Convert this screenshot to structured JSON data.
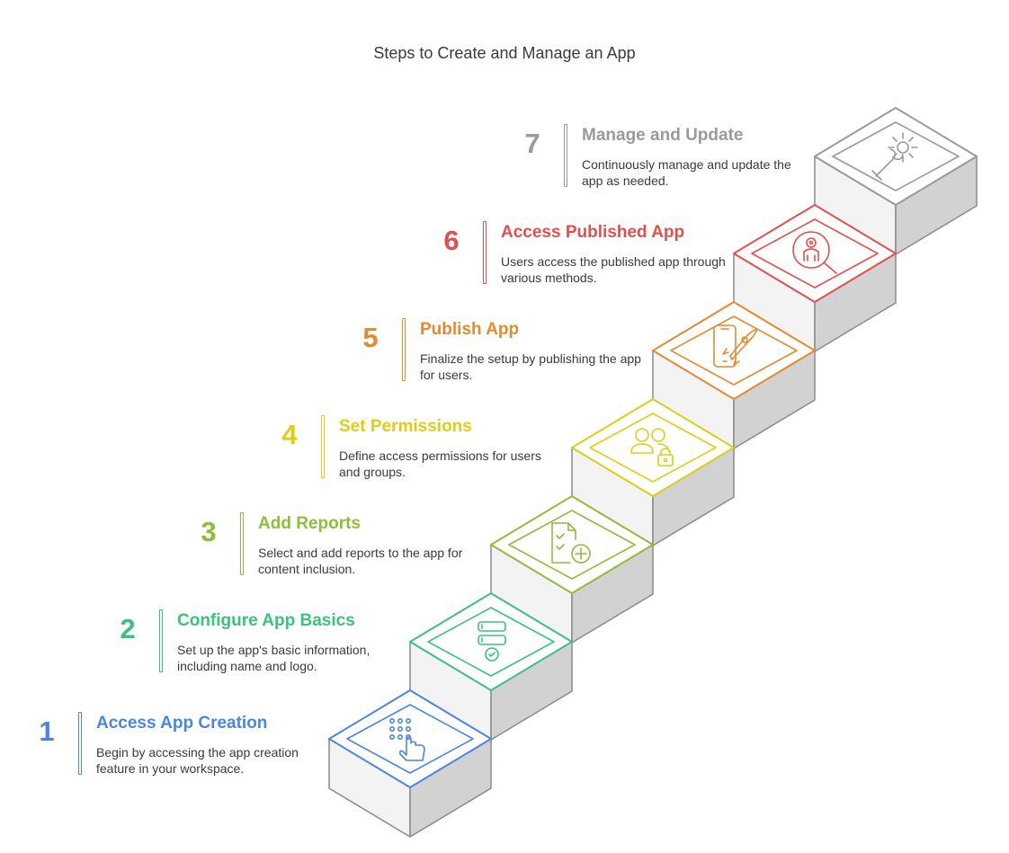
{
  "title": "Steps to Create and Manage an App",
  "steps": [
    {
      "num": "1",
      "title": "Access App Creation",
      "desc": "Begin by accessing the app creation feature in your workspace.",
      "color": "#4a86e0",
      "icon": "pointer-hand-keypad-icon"
    },
    {
      "num": "2",
      "title": "Configure App Basics",
      "desc": "Set up the app's basic information, including name and logo.",
      "color": "#3cc27c",
      "icon": "form-fields-check-icon"
    },
    {
      "num": "3",
      "title": "Add Reports",
      "desc": "Select and add reports to the app for content inclusion.",
      "color": "#8fbc3a",
      "icon": "report-add-icon"
    },
    {
      "num": "4",
      "title": "Set Permissions",
      "desc": "Define access permissions for users and groups.",
      "color": "#e0cc18",
      "icon": "users-lock-icon"
    },
    {
      "num": "5",
      "title": "Publish App",
      "desc": "Finalize the setup by publishing the app for users.",
      "color": "#e48a30",
      "icon": "phone-rocket-icon"
    },
    {
      "num": "6",
      "title": "Access Published App",
      "desc": "Users access the published app through various methods.",
      "color": "#e05050",
      "icon": "search-robot-icon"
    },
    {
      "num": "7",
      "title": "Manage and Update",
      "desc": "Continuously manage and update the app as needed.",
      "color": "#9a9a9a",
      "icon": "wrench-gear-icon"
    }
  ]
}
